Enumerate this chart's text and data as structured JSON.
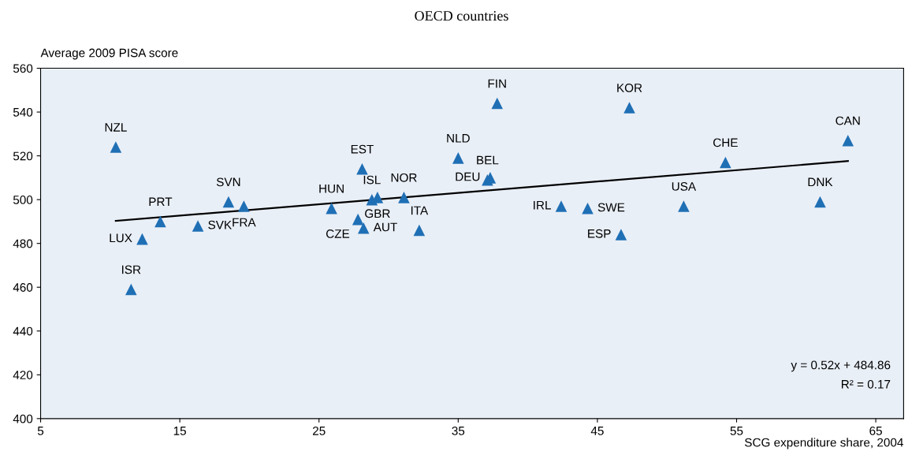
{
  "chart_data": {
    "type": "scatter",
    "subtitle": "OECD countries",
    "xlabel": "SCG expenditure share, 2004",
    "ylabel": "Average 2009 PISA score",
    "xlim": [
      5,
      67
    ],
    "xticks": [
      5,
      15,
      25,
      35,
      45,
      55,
      65
    ],
    "ylim": [
      400,
      560
    ],
    "yticks": [
      400,
      420,
      440,
      460,
      480,
      500,
      520,
      540,
      560
    ],
    "grid": false,
    "legend": false,
    "series": [
      {
        "marker": "triangle",
        "color": "#1f6fb5",
        "x": [
          10.4,
          12.3,
          13.6,
          11.5,
          16.3,
          18.5,
          19.6,
          25.9,
          27.8,
          28.2,
          28.1,
          28.8,
          29.2,
          31.1,
          32.2,
          35.0,
          37.8,
          37.1,
          37.3,
          42.4,
          44.3,
          46.7,
          47.3,
          51.2,
          54.2,
          61.0,
          63.0
        ],
        "values": [
          524,
          482,
          490,
          459,
          488,
          499,
          497,
          496,
          491,
          487,
          514,
          500,
          501,
          501,
          486,
          519,
          544,
          509,
          510,
          497,
          496,
          484,
          542,
          497,
          517,
          499,
          527
        ]
      },
      {
        "type": "line",
        "marker": "none",
        "color": "#000000",
        "x": [
          10.4,
          63.0
        ],
        "values": [
          490.3,
          517.6
        ]
      }
    ],
    "annotations": [
      {
        "text": "NZL",
        "x": 10.4,
        "y": 524
      },
      {
        "text": "LUX",
        "x": 12.3,
        "y": 482
      },
      {
        "text": "PRT",
        "x": 13.6,
        "y": 490
      },
      {
        "text": "ISR",
        "x": 11.5,
        "y": 459
      },
      {
        "text": "SVK",
        "x": 16.3,
        "y": 488
      },
      {
        "text": "SVN",
        "x": 18.5,
        "y": 499
      },
      {
        "text": "FRA",
        "x": 19.6,
        "y": 497
      },
      {
        "text": "HUN",
        "x": 25.9,
        "y": 496
      },
      {
        "text": "CZE",
        "x": 27.8,
        "y": 491
      },
      {
        "text": "AUT",
        "x": 28.2,
        "y": 487
      },
      {
        "text": "EST",
        "x": 28.1,
        "y": 514
      },
      {
        "text": "ISL",
        "x": 28.8,
        "y": 500
      },
      {
        "text": "GBR",
        "x": 29.2,
        "y": 501
      },
      {
        "text": "NOR",
        "x": 31.1,
        "y": 501
      },
      {
        "text": "ITA",
        "x": 32.2,
        "y": 486
      },
      {
        "text": "NLD",
        "x": 35.0,
        "y": 519
      },
      {
        "text": "FIN",
        "x": 37.8,
        "y": 544
      },
      {
        "text": "BEL",
        "x": 37.1,
        "y": 509
      },
      {
        "text": "DEU",
        "x": 37.3,
        "y": 510
      },
      {
        "text": "IRL",
        "x": 42.4,
        "y": 497
      },
      {
        "text": "SWE",
        "x": 44.3,
        "y": 496
      },
      {
        "text": "ESP",
        "x": 46.7,
        "y": 484
      },
      {
        "text": "KOR",
        "x": 47.3,
        "y": 542
      },
      {
        "text": "USA",
        "x": 51.2,
        "y": 497
      },
      {
        "text": "CHE",
        "x": 54.2,
        "y": 517
      },
      {
        "text": "DNK",
        "x": 61.0,
        "y": 499
      },
      {
        "text": "CAN",
        "x": 63.0,
        "y": 527
      },
      "y = 0.52x + 484.86",
      "R² = 0.17"
    ]
  }
}
